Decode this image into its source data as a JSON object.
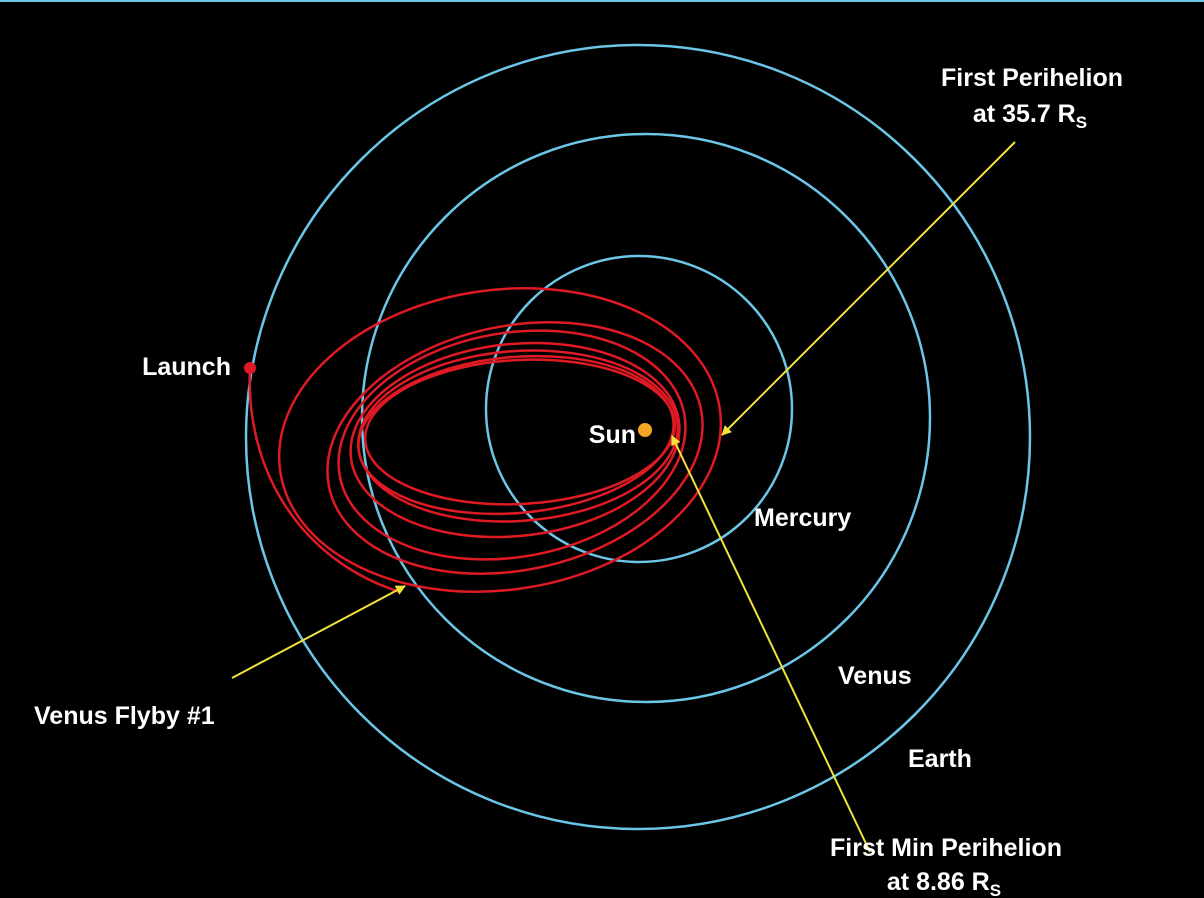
{
  "labels": {
    "first_perihelion": {
      "line1": "First Perihelion",
      "line2": "at 35.7 R",
      "subscript": "S"
    },
    "launch": "Launch",
    "sun": "Sun",
    "mercury": "Mercury",
    "venus": "Venus",
    "earth": "Earth",
    "venus_flyby": "Venus Flyby #1",
    "first_min_perihelion": {
      "line1": "First Min Perihelion",
      "line2": "at 8.86 R",
      "subscript": "S"
    }
  }
}
